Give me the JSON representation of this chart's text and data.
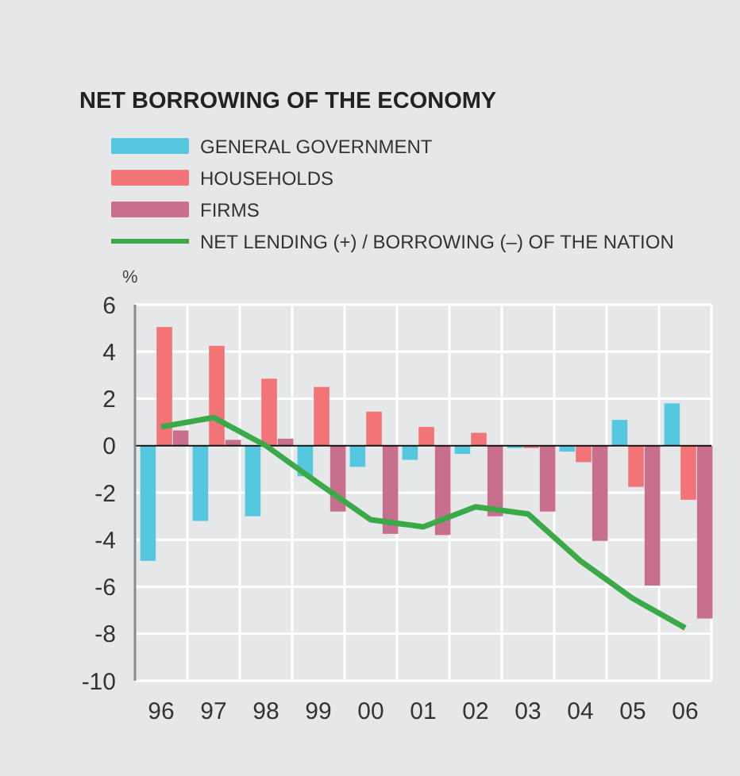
{
  "chart_data": {
    "type": "bar",
    "title": "NET BORROWING OF THE ECONOMY",
    "ylabel": "%",
    "categories": [
      "96",
      "97",
      "98",
      "99",
      "00",
      "01",
      "02",
      "03",
      "04",
      "05",
      "06"
    ],
    "series": [
      {
        "name": "GENERAL GOVERNMENT",
        "color": "#55c8e0",
        "values": [
          -4.9,
          -3.2,
          -3.0,
          -1.3,
          -0.9,
          -0.6,
          -0.35,
          -0.1,
          -0.25,
          1.1,
          1.8
        ]
      },
      {
        "name": "HOUSEHOLDS",
        "color": "#f27476",
        "values": [
          5.05,
          4.25,
          2.85,
          2.5,
          1.45,
          0.8,
          0.55,
          -0.1,
          -0.7,
          -1.75,
          -2.3
        ]
      },
      {
        "name": "FIRMS",
        "color": "#c86f8e",
        "values": [
          0.65,
          0.25,
          0.3,
          -2.8,
          -3.75,
          -3.8,
          -3.0,
          -2.8,
          -4.05,
          -5.95,
          -7.35
        ]
      },
      {
        "name": "NET LENDING (+) / BORROWING (–) OF THE NATION",
        "type": "line",
        "color": "#3aaa48",
        "values": [
          0.8,
          1.2,
          0.0,
          -1.6,
          -3.15,
          -3.45,
          -2.6,
          -2.9,
          -4.9,
          -6.5,
          -7.75
        ]
      }
    ],
    "ylim": [
      -10,
      6
    ],
    "yticks": [
      -10,
      -8,
      -6,
      -4,
      -2,
      0,
      2,
      4,
      6
    ],
    "grid": true,
    "legend": "top left"
  }
}
